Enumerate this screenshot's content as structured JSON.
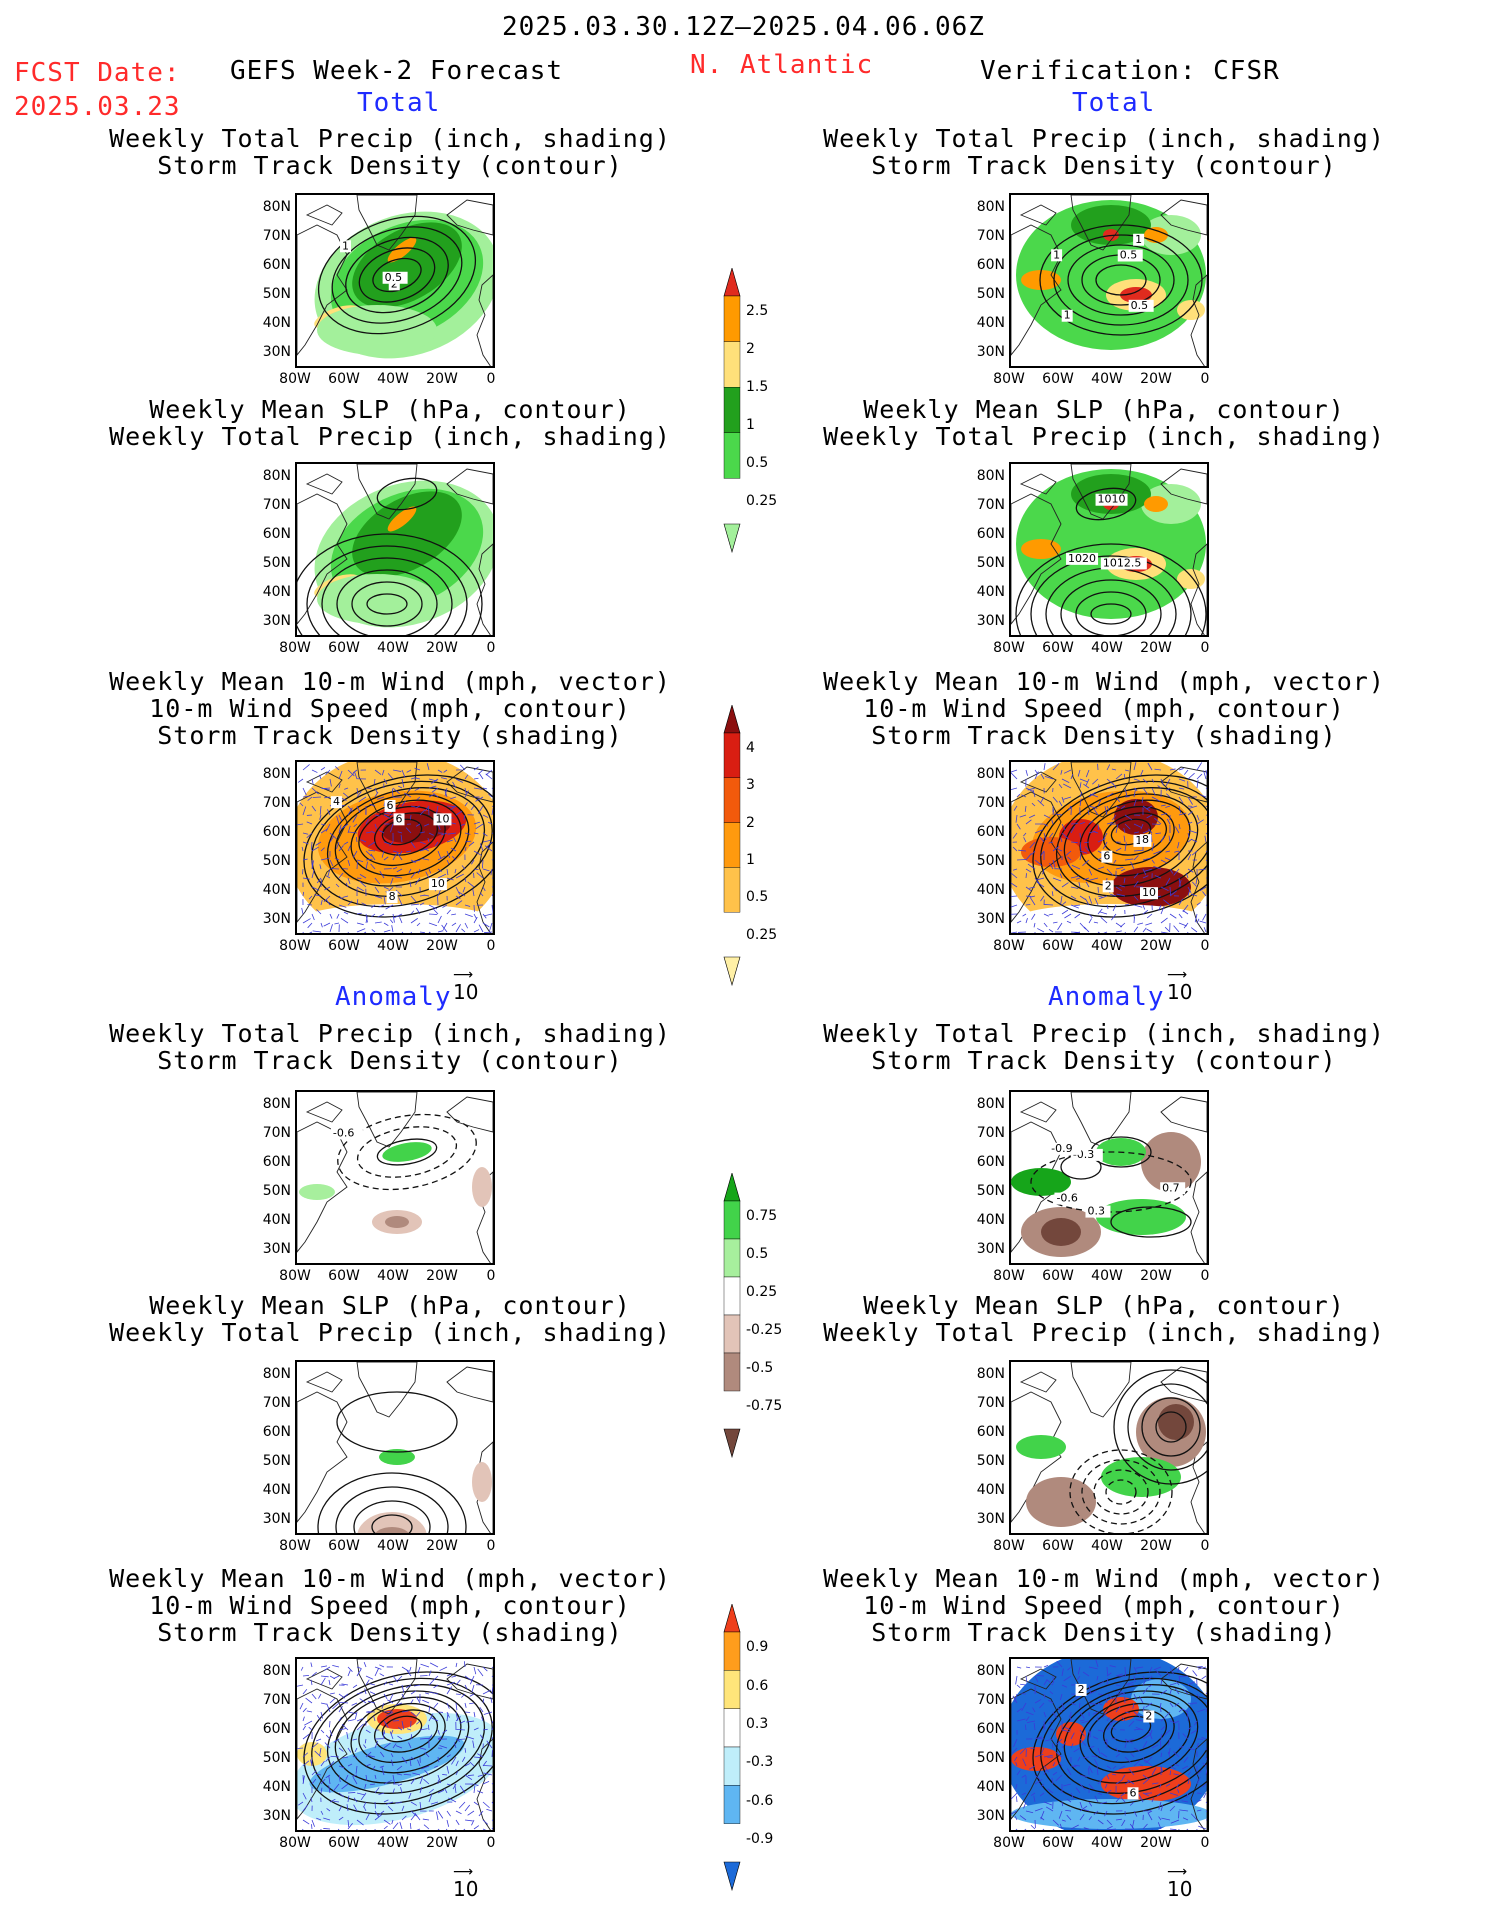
{
  "header": {
    "date_range": "2025.03.30.12Z–2025.04.06.06Z",
    "fcst_label": "FCST Date:",
    "fcst_date": "2025.03.23",
    "left_title": "GEFS Week-2 Forecast",
    "region": "N. Atlantic",
    "right_title": "Verification: CFSR"
  },
  "sections": {
    "total": "Total",
    "anomaly": "Anomaly"
  },
  "panel_titles": {
    "precip_track": "Weekly Total Precip (inch, shading)\nStorm Track Density (contour)",
    "slp_precip": "Weekly Mean SLP (hPa, contour)\nWeekly Total Precip (inch, shading)",
    "wind_track": "Weekly Mean 10-m Wind (mph, vector)\n10-m Wind Speed (mph, contour)\nStorm Track Density (shading)"
  },
  "axes": {
    "lat_labels": [
      "80N",
      "70N",
      "60N",
      "50N",
      "40N",
      "30N"
    ],
    "lon_labels": [
      "80W",
      "60W",
      "40W",
      "20W",
      "0"
    ]
  },
  "vector_ref": "10",
  "contour_labels": {
    "fc_total_precip": [
      "2",
      "1",
      "0.5"
    ],
    "ob_total_precip": [
      "0.5",
      "1",
      "1",
      "1",
      "0.5"
    ],
    "ob_total_slp": [
      "1020",
      "1010",
      "1012.5"
    ],
    "fc_total_wind": [
      "6",
      "10",
      "4",
      "10",
      "8",
      "6"
    ],
    "ob_total_wind": [
      "10",
      "10",
      "8",
      "6",
      "2"
    ],
    "fc_anom_precip": [
      "-0.6"
    ],
    "ob_anom_precip": [
      "-0.3",
      "-0.6",
      "-0.9",
      "0.3",
      "0.7"
    ],
    "ob_anom_wind": [
      "2",
      "2",
      "6"
    ]
  },
  "colorbars": [
    {
      "id": "precip_total",
      "ticks": [
        "2.5",
        "2",
        "1.5",
        "1",
        "0.5",
        "0.25"
      ],
      "colors": [
        "#e02b1e",
        "#ff9a00",
        "#ffe07a",
        "#22a01d",
        "#4bd84b",
        "#a3f09b"
      ]
    },
    {
      "id": "track_total",
      "ticks": [
        "4",
        "3",
        "2",
        "1",
        "0.5",
        "0.25"
      ],
      "colors": [
        "#8b0f0f",
        "#d91e12",
        "#f25a0c",
        "#ff9a0e",
        "#ffc24a",
        "#fff0a6"
      ]
    },
    {
      "id": "precip_anom",
      "ticks": [
        "0.75",
        "0.5",
        "0.25",
        "-0.25",
        "-0.5",
        "-0.75"
      ],
      "colors": [
        "#16a51a",
        "#42d34a",
        "#a7ef9d",
        "#ffffff",
        "#e2c4b8",
        "#b08a7d",
        "#73473c"
      ]
    },
    {
      "id": "track_anom",
      "ticks": [
        "0.9",
        "0.6",
        "0.3",
        "-0.3",
        "-0.6",
        "-0.9"
      ],
      "colors": [
        "#ee3f1c",
        "#ff9d1c",
        "#ffe57a",
        "#ffffff",
        "#bfeefa",
        "#5fb6f2",
        "#1c6ad8"
      ]
    }
  ]
}
